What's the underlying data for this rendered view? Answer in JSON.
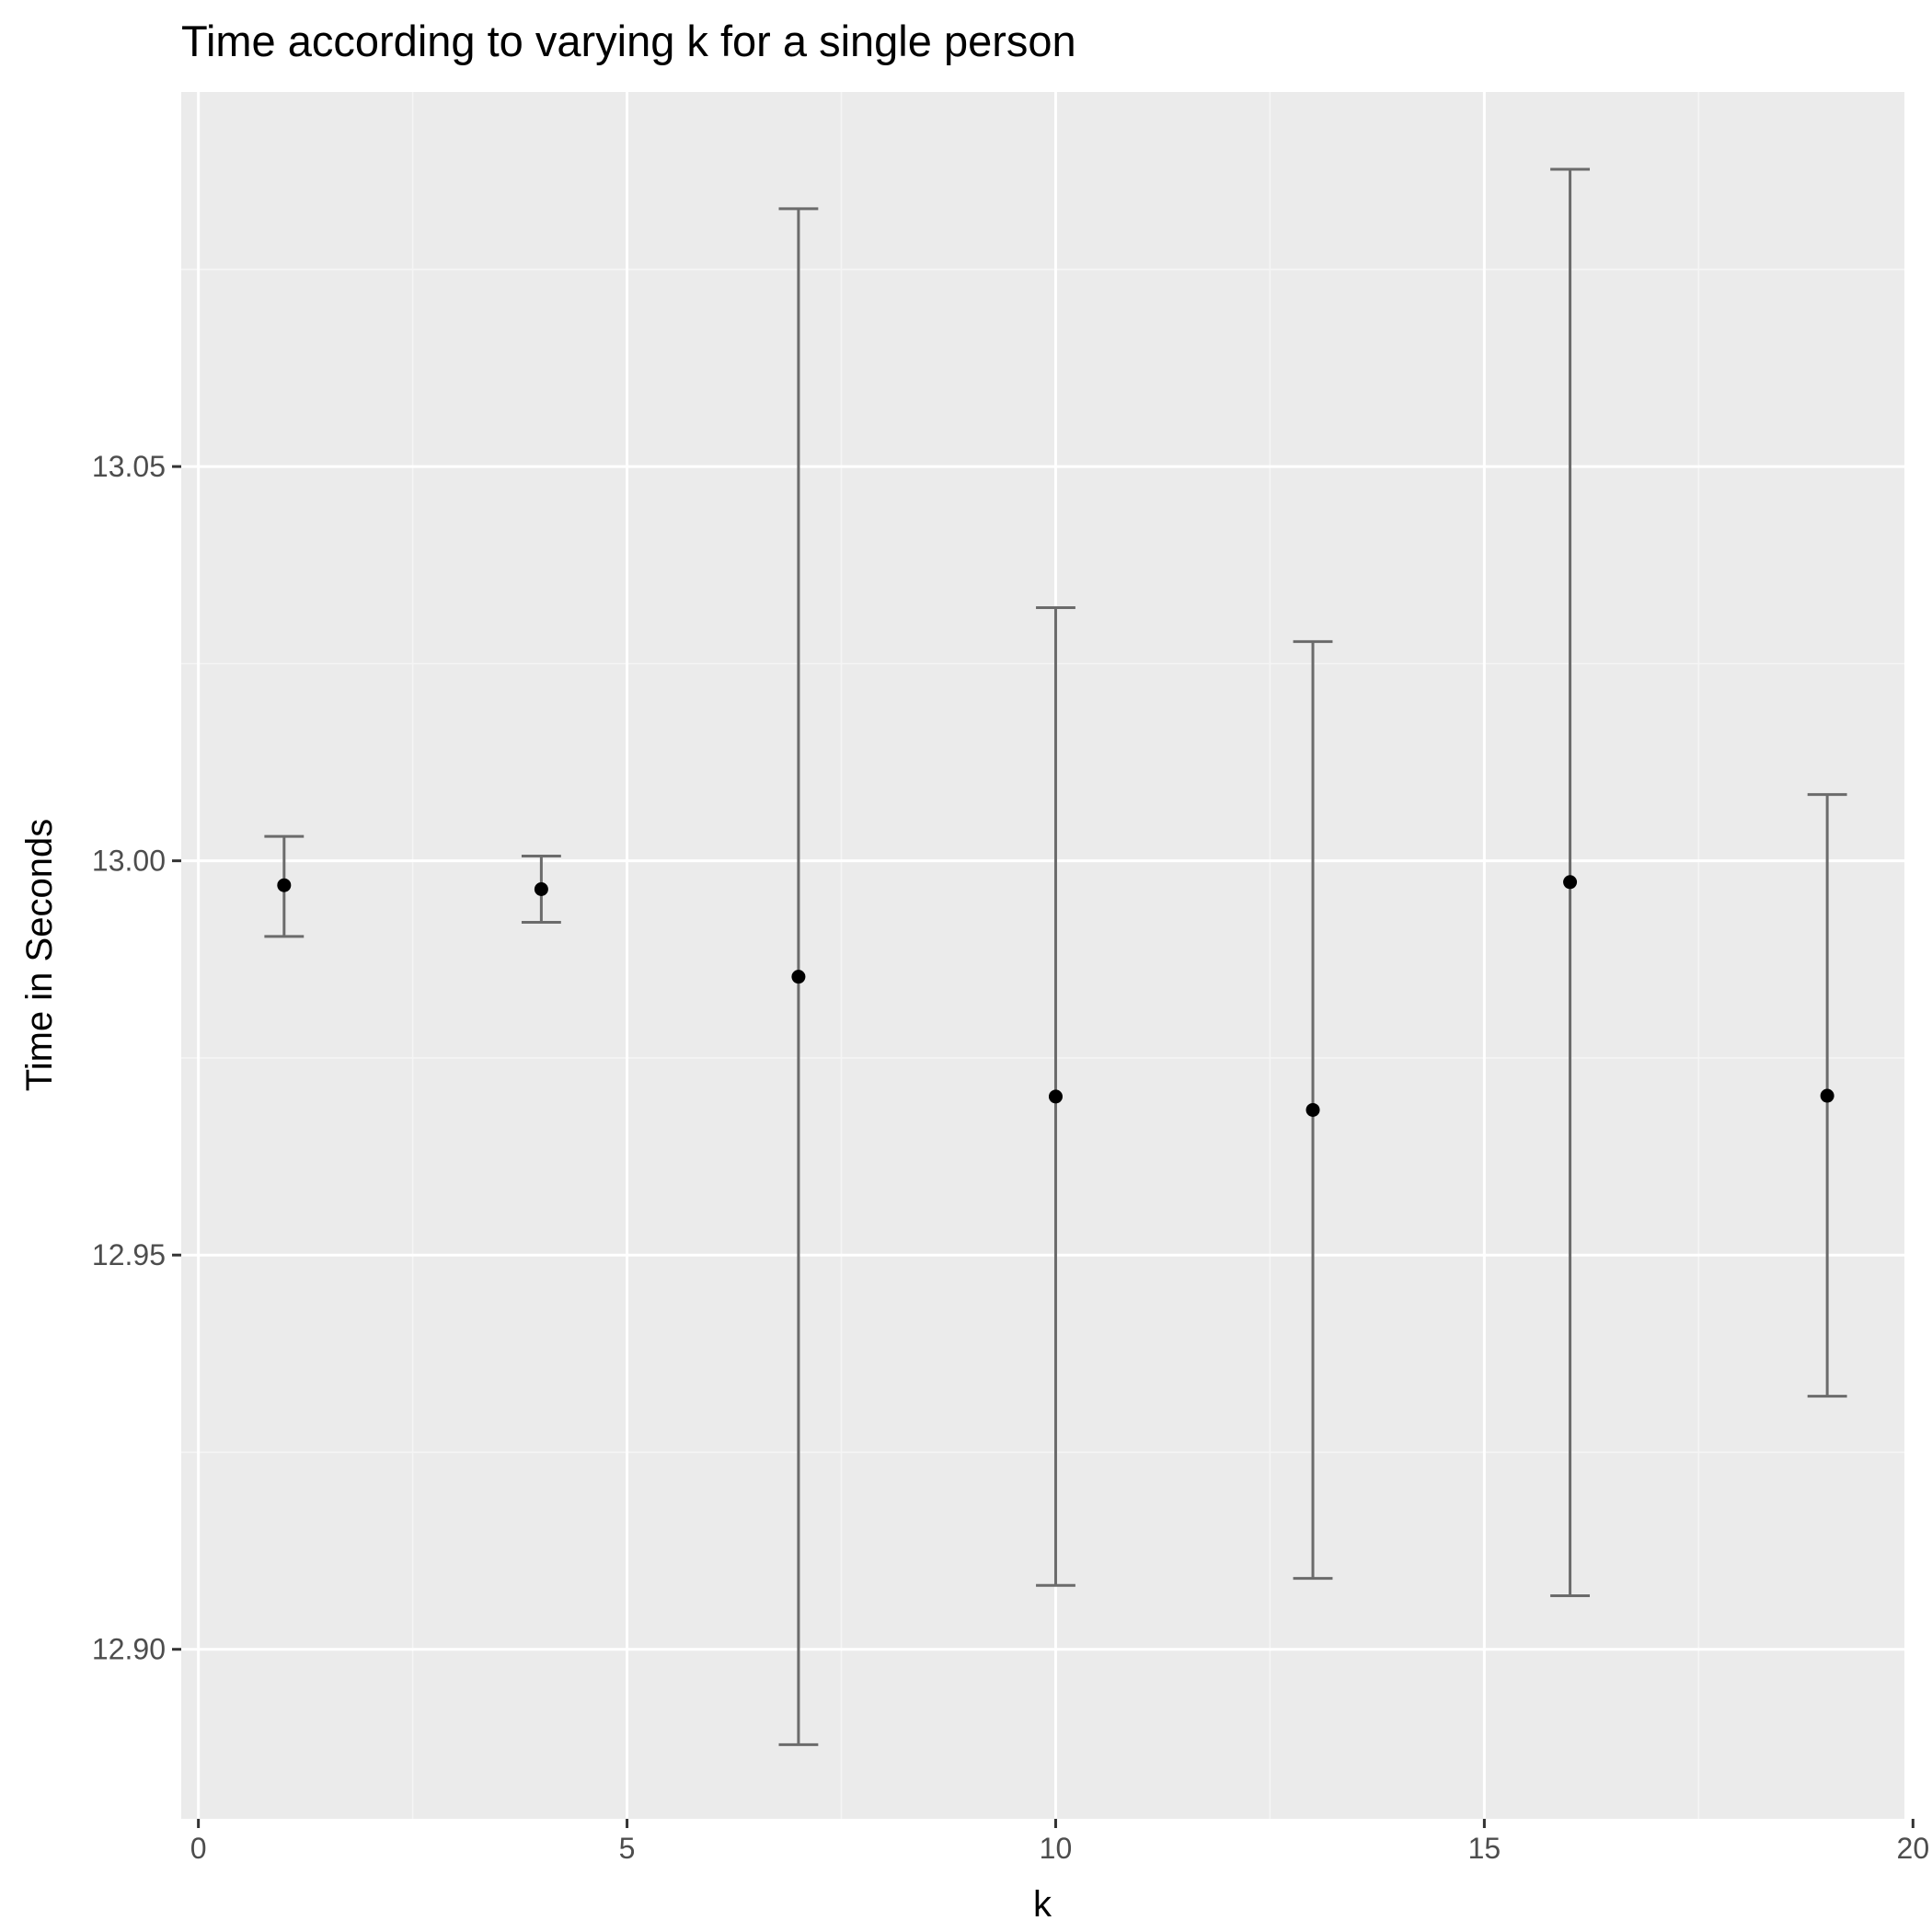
{
  "colors": {
    "panel_background": "#ebebeb",
    "grid_major": "#ffffff",
    "grid_minor": "#f5f5f5",
    "errorbar": "#6b6b6b",
    "point": "#000000",
    "tick_mark": "#333333",
    "tick_label": "#4d4d4d"
  },
  "chart_data": {
    "type": "scatter",
    "geom": "point-with-errorbars",
    "title": "Time according to varying k for a single person",
    "xlabel": "k",
    "ylabel": "Time in Seconds",
    "xlim": [
      -0.2,
      19.9
    ],
    "ylim": [
      12.8785,
      13.0975
    ],
    "x_ticks": [
      0,
      5,
      10,
      15,
      20
    ],
    "x_tick_labels": [
      "0",
      "5",
      "10",
      "15",
      "20"
    ],
    "y_ticks": [
      12.9,
      12.95,
      13.0,
      13.05
    ],
    "y_tick_labels": [
      "12.90",
      "12.95",
      "13.00",
      "13.05"
    ],
    "grid": true,
    "legend": "none",
    "points": [
      {
        "x": 1,
        "y": 12.9969,
        "ymin": 12.9904,
        "ymax": 13.0031
      },
      {
        "x": 4,
        "y": 12.9964,
        "ymin": 12.9922,
        "ymax": 13.0006
      },
      {
        "x": 7,
        "y": 12.9853,
        "ymin": 12.8879,
        "ymax": 13.0827
      },
      {
        "x": 10,
        "y": 12.9701,
        "ymin": 12.9081,
        "ymax": 13.0321
      },
      {
        "x": 13,
        "y": 12.9684,
        "ymin": 12.909,
        "ymax": 13.0278
      },
      {
        "x": 16,
        "y": 12.9973,
        "ymin": 12.9068,
        "ymax": 13.0877
      },
      {
        "x": 19,
        "y": 12.9702,
        "ymin": 12.9321,
        "ymax": 13.0084
      }
    ]
  }
}
